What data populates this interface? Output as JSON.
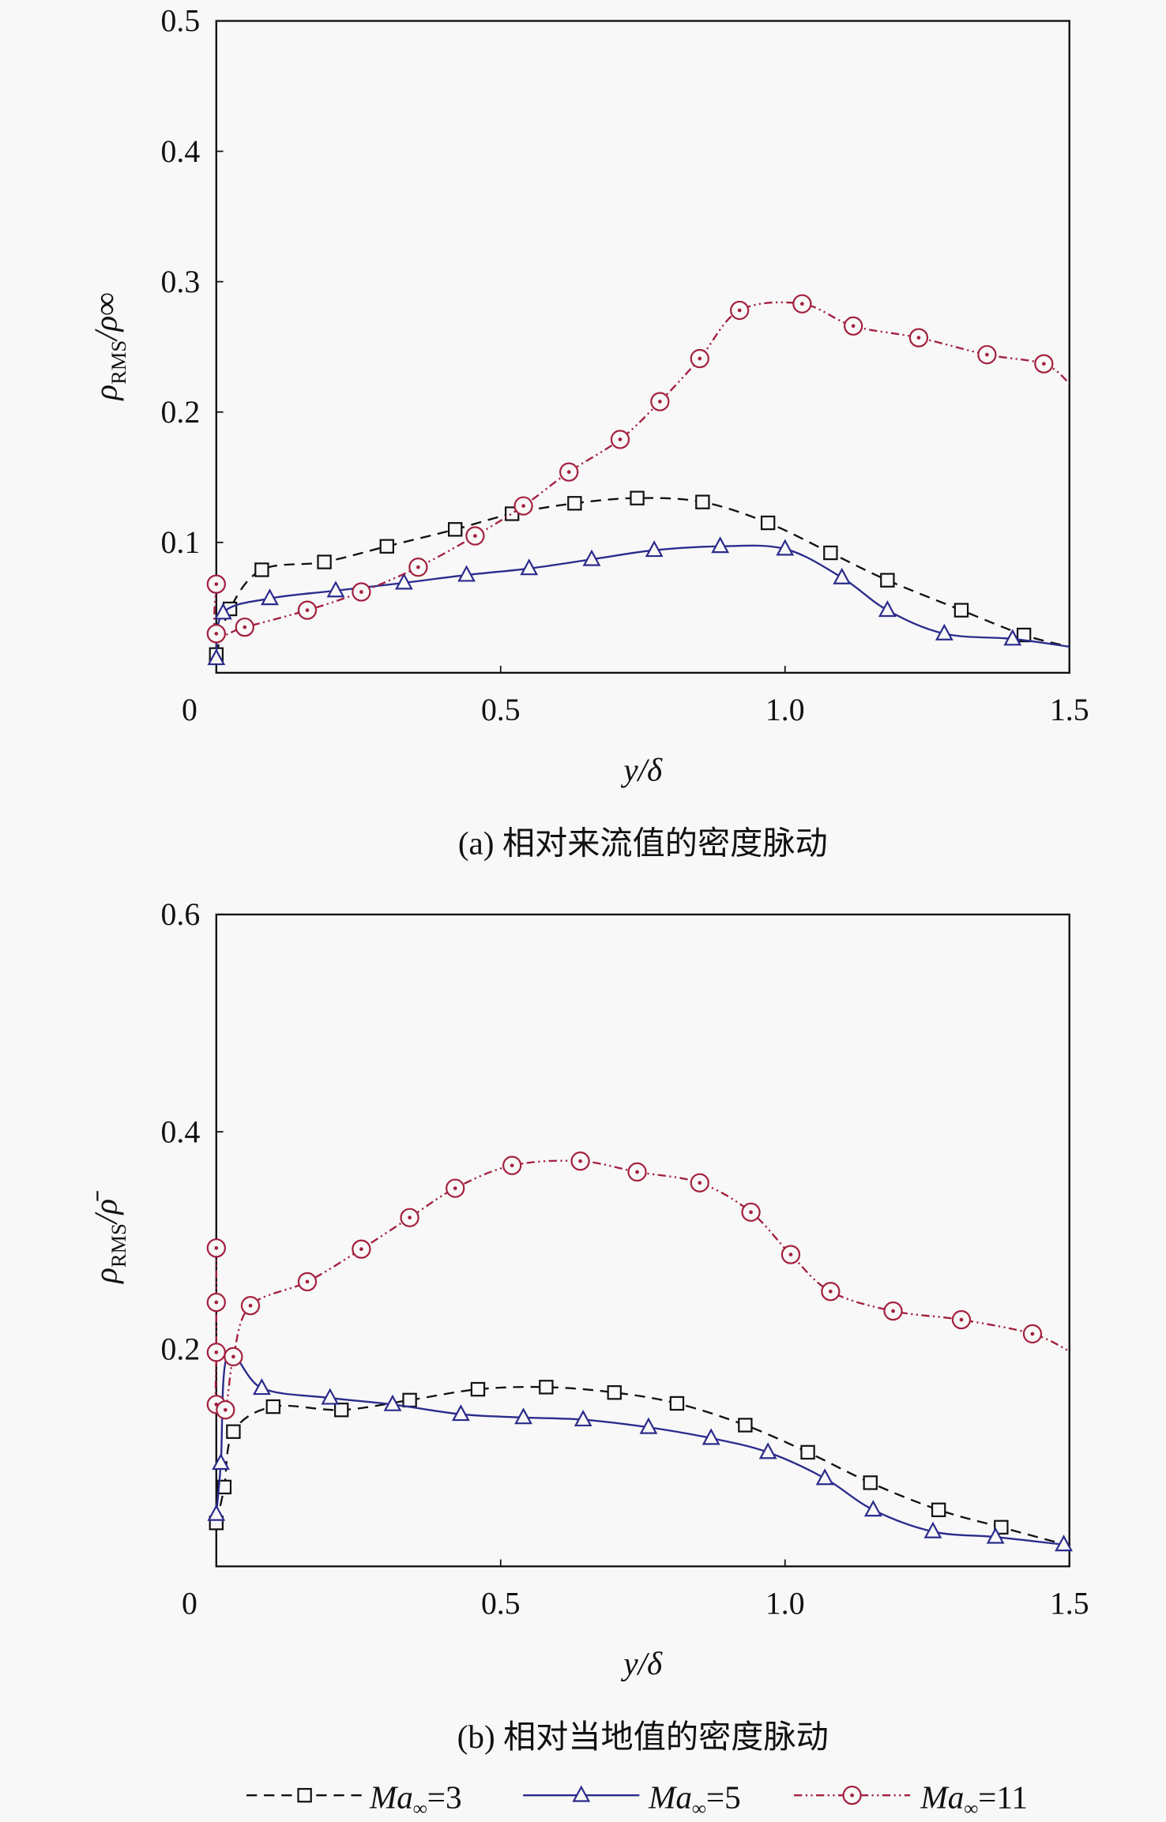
{
  "chart_data": [
    {
      "type": "line",
      "title": "",
      "caption": "(a) 相对来流值的密度脉动",
      "xlabel": "y/δ",
      "ylabel_main": "ρ",
      "ylabel_sub": "RMS",
      "ylabel_rest": "/ρ∞",
      "xlim": [
        0,
        1.5
      ],
      "ylim": [
        0,
        0.5
      ],
      "xticks": [
        0,
        0.5,
        1.0,
        1.5
      ],
      "xtick_labels": [
        "0",
        "0.5",
        "1.0",
        "1.5"
      ],
      "yticks": [
        0.1,
        0.2,
        0.3,
        0.4,
        0.5
      ],
      "ytick_labels": [
        "0.1",
        "0.2",
        "0.3",
        "0.4",
        "0.5"
      ],
      "grid": false,
      "series": [
        {
          "name": "Ma∞=3",
          "marker": "square",
          "dash": "dashed",
          "color": "#111111",
          "x": [
            0.0,
            0.024,
            0.08,
            0.19,
            0.3,
            0.42,
            0.52,
            0.63,
            0.74,
            0.855,
            0.97,
            1.08,
            1.18,
            1.31,
            1.42,
            1.5
          ],
          "y": [
            0.014,
            0.049,
            0.079,
            0.085,
            0.097,
            0.11,
            0.122,
            0.13,
            0.134,
            0.131,
            0.115,
            0.092,
            0.071,
            0.048,
            0.029,
            0.02
          ],
          "markers_on": [
            0,
            1,
            2,
            3,
            4,
            5,
            6,
            7,
            8,
            9,
            10,
            11,
            12,
            13,
            14
          ]
        },
        {
          "name": "Ma∞=5",
          "marker": "triangle",
          "dash": "solid",
          "color": "#2b2b8c",
          "x": [
            0.0,
            0.012,
            0.094,
            0.21,
            0.33,
            0.44,
            0.55,
            0.66,
            0.77,
            0.886,
            1.0,
            1.1,
            1.18,
            1.28,
            1.4,
            1.5
          ],
          "y": [
            0.011,
            0.046,
            0.057,
            0.063,
            0.069,
            0.075,
            0.08,
            0.087,
            0.094,
            0.097,
            0.095,
            0.073,
            0.048,
            0.03,
            0.026,
            0.02
          ],
          "markers_on": [
            0,
            1,
            2,
            3,
            4,
            5,
            6,
            7,
            8,
            9,
            10,
            11,
            12,
            13,
            14
          ]
        },
        {
          "name": "Ma∞=11",
          "marker": "circle",
          "dash": "dashdotdot",
          "color": "#a3203f",
          "x": [
            0.0,
            0.0,
            0.05,
            0.16,
            0.255,
            0.355,
            0.455,
            0.54,
            0.62,
            0.71,
            0.78,
            0.85,
            0.92,
            1.03,
            1.12,
            1.235,
            1.355,
            1.455,
            1.5
          ],
          "y": [
            0.068,
            0.03,
            0.035,
            0.048,
            0.062,
            0.081,
            0.105,
            0.128,
            0.154,
            0.179,
            0.208,
            0.241,
            0.278,
            0.283,
            0.266,
            0.257,
            0.244,
            0.237,
            0.222
          ],
          "markers_on": [
            0,
            1,
            2,
            3,
            4,
            5,
            6,
            7,
            8,
            9,
            10,
            11,
            12,
            13,
            14,
            15,
            16,
            17
          ]
        }
      ]
    },
    {
      "type": "line",
      "title": "",
      "caption": "(b) 相对当地值的密度脉动",
      "xlabel": "y/δ",
      "ylabel_main": "ρ",
      "ylabel_sub": "RMS",
      "ylabel_rest": "/ρ̄",
      "xlim": [
        0,
        1.5
      ],
      "ylim": [
        0,
        0.6
      ],
      "xticks": [
        0,
        0.5,
        1.0,
        1.5
      ],
      "xtick_labels": [
        "0",
        "0.5",
        "1.0",
        "1.5"
      ],
      "yticks": [
        0.2,
        0.4,
        0.6
      ],
      "ytick_labels": [
        "0.2",
        "0.4",
        "0.6"
      ],
      "grid": false,
      "series": [
        {
          "name": "Ma∞=3",
          "marker": "square",
          "dash": "dashed",
          "color": "#111111",
          "x": [
            0.0,
            0.014,
            0.03,
            0.1,
            0.22,
            0.34,
            0.46,
            0.58,
            0.7,
            0.81,
            0.93,
            1.04,
            1.15,
            1.27,
            1.38,
            1.5
          ],
          "y": [
            0.04,
            0.073,
            0.124,
            0.147,
            0.144,
            0.153,
            0.163,
            0.165,
            0.16,
            0.15,
            0.13,
            0.105,
            0.077,
            0.052,
            0.036,
            0.019
          ],
          "markers_on": [
            0,
            1,
            2,
            3,
            4,
            5,
            6,
            7,
            8,
            9,
            10,
            11,
            12,
            13,
            14
          ]
        },
        {
          "name": "Ma∞=5",
          "marker": "triangle",
          "dash": "solid",
          "color": "#2b2b8c",
          "x": [
            0.0,
            0.008,
            0.02,
            0.08,
            0.2,
            0.31,
            0.43,
            0.54,
            0.645,
            0.76,
            0.87,
            0.97,
            1.07,
            1.155,
            1.26,
            1.37,
            1.49
          ],
          "y": [
            0.048,
            0.095,
            0.195,
            0.164,
            0.155,
            0.149,
            0.14,
            0.137,
            0.135,
            0.128,
            0.118,
            0.105,
            0.081,
            0.052,
            0.032,
            0.027,
            0.02
          ],
          "markers_on": [
            0,
            1,
            3,
            4,
            5,
            6,
            7,
            8,
            9,
            10,
            11,
            12,
            13,
            14,
            15,
            16
          ]
        },
        {
          "name": "Ma∞=11",
          "marker": "circle",
          "dash": "dashdotdot",
          "color": "#a3203f",
          "x": [
            0.0,
            0.0,
            0.0,
            0.0,
            0.016,
            0.03,
            0.06,
            0.16,
            0.255,
            0.34,
            0.42,
            0.52,
            0.64,
            0.74,
            0.85,
            0.94,
            1.01,
            1.08,
            1.19,
            1.31,
            1.435,
            1.5
          ],
          "y": [
            0.293,
            0.243,
            0.197,
            0.149,
            0.144,
            0.193,
            0.24,
            0.262,
            0.292,
            0.321,
            0.348,
            0.369,
            0.373,
            0.363,
            0.353,
            0.326,
            0.287,
            0.253,
            0.235,
            0.227,
            0.214,
            0.198
          ],
          "markers_on": [
            0,
            1,
            2,
            3,
            4,
            5,
            6,
            7,
            8,
            9,
            10,
            11,
            12,
            13,
            14,
            15,
            16,
            17,
            18,
            19,
            20
          ]
        }
      ]
    }
  ],
  "legend": {
    "placement": "bottom",
    "items": [
      {
        "label_main": "Ma",
        "label_sub": "∞",
        "label_rest": "=3"
      },
      {
        "label_main": "Ma",
        "label_sub": "∞",
        "label_rest": "=5"
      },
      {
        "label_main": "Ma",
        "label_sub": "∞",
        "label_rest": "=11"
      }
    ]
  }
}
